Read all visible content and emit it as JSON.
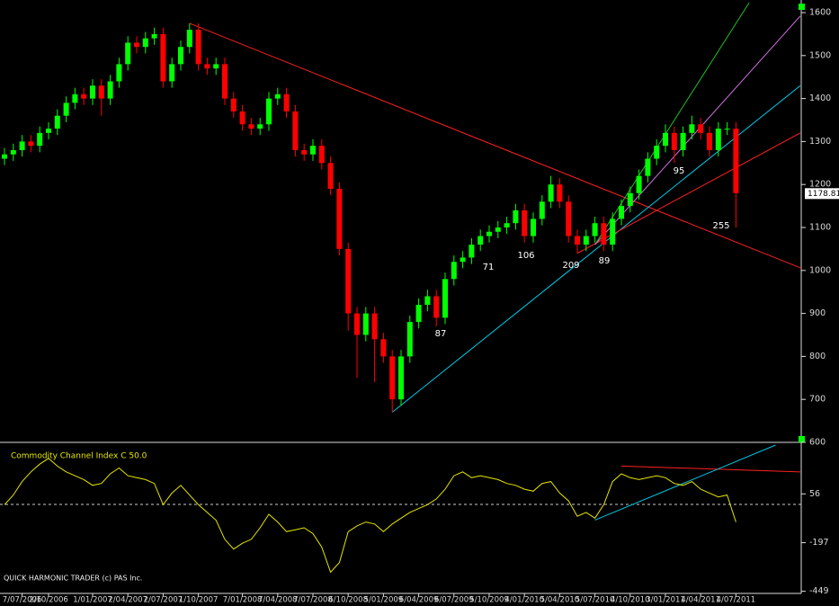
{
  "chart_data": [
    {
      "type": "candlestick",
      "categories": [
        null,
        null,
        "7/07/2006",
        null,
        null,
        "2/10/2006",
        null,
        null,
        null,
        null,
        "1/01/2007",
        null,
        null,
        null,
        "2/04/2007",
        null,
        null,
        null,
        "2/07/2007",
        null,
        null,
        null,
        "1/10/2007",
        null,
        null,
        null,
        null,
        "7/01/2008",
        null,
        null,
        null,
        "7/04/2008",
        null,
        null,
        null,
        "7/07/2008",
        null,
        null,
        null,
        "6/10/2008",
        null,
        null,
        null,
        "5/01/2009",
        null,
        null,
        null,
        "6/04/2009",
        null,
        null,
        null,
        "6/07/2009",
        null,
        null,
        null,
        "5/10/2009",
        null,
        null,
        null,
        "4/01/2010",
        null,
        null,
        null,
        "5/04/2010",
        null,
        null,
        null,
        "5/07/2010",
        null,
        null,
        null,
        "4/10/2010",
        null,
        null,
        null,
        "3/01/2011",
        null,
        null,
        null,
        "4/04/2011",
        null,
        null,
        null,
        "4/07/2011"
      ],
      "open": [
        1260,
        1270,
        1280,
        1300,
        1290,
        1320,
        1330,
        1360,
        1390,
        1410,
        1400,
        1430,
        1400,
        1440,
        1480,
        1530,
        1520,
        1540,
        1550,
        1440,
        1480,
        1520,
        1560,
        1480,
        1470,
        1480,
        1400,
        1370,
        1340,
        1330,
        1340,
        1400,
        1410,
        1370,
        1280,
        1270,
        1290,
        1250,
        1190,
        1050,
        900,
        850,
        900,
        840,
        800,
        700,
        800,
        880,
        920,
        940,
        890,
        980,
        1020,
        1030,
        1060,
        1080,
        1090,
        1100,
        1110,
        1140,
        1080,
        1120,
        1160,
        1200,
        1160,
        1080,
        1060,
        1080,
        1110,
        1060,
        1120,
        1150,
        1180,
        1220,
        1260,
        1290,
        1320,
        1280,
        1320,
        1340,
        1320,
        1280,
        1330,
        1330
      ],
      "high": [
        1285,
        1295,
        1315,
        1315,
        1335,
        1345,
        1375,
        1405,
        1425,
        1425,
        1445,
        1445,
        1455,
        1495,
        1545,
        1545,
        1555,
        1565,
        1565,
        1495,
        1535,
        1575,
        1575,
        1495,
        1495,
        1495,
        1415,
        1385,
        1355,
        1355,
        1415,
        1425,
        1425,
        1385,
        1295,
        1305,
        1305,
        1265,
        1205,
        1065,
        915,
        915,
        915,
        855,
        815,
        815,
        895,
        935,
        955,
        955,
        995,
        1035,
        1045,
        1075,
        1095,
        1105,
        1115,
        1125,
        1155,
        1155,
        1135,
        1175,
        1220,
        1215,
        1175,
        1095,
        1095,
        1125,
        1125,
        1135,
        1165,
        1195,
        1235,
        1275,
        1305,
        1340,
        1335,
        1335,
        1360,
        1355,
        1335,
        1345,
        1345,
        1345
      ],
      "low": [
        1245,
        1255,
        1265,
        1275,
        1275,
        1305,
        1315,
        1345,
        1375,
        1385,
        1385,
        1360,
        1385,
        1425,
        1465,
        1505,
        1505,
        1525,
        1425,
        1425,
        1465,
        1505,
        1465,
        1455,
        1455,
        1385,
        1355,
        1325,
        1315,
        1315,
        1325,
        1385,
        1355,
        1265,
        1255,
        1255,
        1235,
        1175,
        1035,
        860,
        750,
        835,
        740,
        785,
        670,
        685,
        785,
        865,
        905,
        870,
        875,
        965,
        1005,
        1015,
        1045,
        1065,
        1075,
        1085,
        1095,
        1065,
        1065,
        1105,
        1145,
        1145,
        1065,
        1040,
        1045,
        1065,
        1045,
        1045,
        1105,
        1135,
        1165,
        1205,
        1245,
        1275,
        1250,
        1265,
        1305,
        1305,
        1265,
        1265,
        1315,
        1100
      ],
      "close": [
        1270,
        1280,
        1300,
        1290,
        1320,
        1330,
        1360,
        1390,
        1410,
        1400,
        1430,
        1400,
        1440,
        1480,
        1530,
        1520,
        1540,
        1550,
        1440,
        1480,
        1520,
        1560,
        1480,
        1470,
        1480,
        1400,
        1370,
        1340,
        1330,
        1340,
        1400,
        1410,
        1370,
        1280,
        1270,
        1290,
        1250,
        1190,
        1050,
        900,
        850,
        900,
        840,
        800,
        700,
        800,
        880,
        920,
        940,
        890,
        980,
        1020,
        1030,
        1060,
        1080,
        1090,
        1100,
        1110,
        1140,
        1080,
        1120,
        1160,
        1200,
        1160,
        1080,
        1060,
        1080,
        1110,
        1060,
        1120,
        1150,
        1180,
        1220,
        1260,
        1290,
        1320,
        1280,
        1320,
        1340,
        1320,
        1280,
        1330,
        1330,
        1180
      ],
      "up_color": "#00ff00",
      "down_color": "#ff0000",
      "ylim": [
        600,
        1623
      ],
      "yticks": [
        600,
        700,
        800,
        900,
        1000,
        1100,
        1200,
        1300,
        1400,
        1500,
        1600
      ],
      "last_price": 1178.81,
      "annotations": [
        "87",
        "71",
        "106",
        "209",
        "89",
        "95",
        "255"
      ],
      "trendlines": [
        {
          "color": "#ff2020",
          "points": [
            [
              21,
              1575
            ],
            [
              94.7,
              970
            ]
          ]
        },
        {
          "color": "#00c8e6",
          "points": [
            [
              44,
              670
            ],
            [
              90.3,
              1430
            ]
          ]
        },
        {
          "color": "#ff2020",
          "points": [
            [
              65,
              1040
            ],
            [
              90.3,
              1320
            ]
          ]
        },
        {
          "color": "#20c020",
          "points": [
            [
              67,
              1060
            ],
            [
              84.5,
              1623
            ]
          ]
        },
        {
          "color": "#d070e0",
          "points": [
            [
              67,
              1060
            ],
            [
              90.3,
              1592
            ]
          ]
        }
      ]
    },
    {
      "type": "line",
      "title": "Commodity Channel Index C 50.0",
      "color": "#e6e600",
      "values": [
        0,
        50,
        120,
        170,
        210,
        240,
        200,
        170,
        150,
        130,
        100,
        110,
        160,
        190,
        150,
        140,
        130,
        110,
        0,
        60,
        100,
        50,
        0,
        -40,
        -80,
        -180,
        -230,
        -200,
        -180,
        -120,
        -50,
        -90,
        -140,
        -130,
        -120,
        -150,
        -220,
        -350,
        -300,
        -140,
        -110,
        -90,
        -100,
        -140,
        -100,
        -70,
        -40,
        -20,
        0,
        30,
        80,
        150,
        170,
        140,
        150,
        140,
        130,
        110,
        100,
        80,
        70,
        110,
        120,
        60,
        20,
        -60,
        -40,
        -70,
        0,
        120,
        160,
        140,
        130,
        140,
        150,
        140,
        110,
        100,
        120,
        80,
        60,
        40,
        50,
        -90
      ],
      "ylim": [
        -460,
        309
      ],
      "yticks": [
        56,
        -197,
        -449
      ],
      "trendlines": [
        {
          "color": "#ff2020",
          "points": [
            [
              70,
              200
            ],
            [
              90.3,
              170
            ]
          ]
        },
        {
          "color": "#00c8e6",
          "points": [
            [
              67,
              -80
            ],
            [
              87.5,
              309
            ]
          ]
        }
      ]
    }
  ],
  "footer": "QUICK HARMONIC TRADER (c) PAS Inc."
}
